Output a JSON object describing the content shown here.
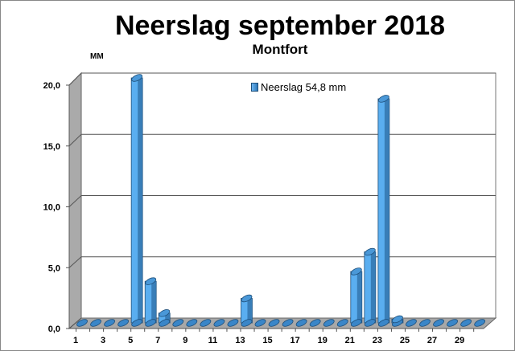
{
  "chart_data": {
    "type": "bar",
    "title": "Neerslag september 2018",
    "subtitle": "Montfort",
    "ylabel": "MM",
    "xlabel": "",
    "ylim": [
      0,
      20
    ],
    "yticks": [
      "0,0",
      "5,0",
      "10,0",
      "15,0",
      "20,0"
    ],
    "ytick_values": [
      0,
      5,
      10,
      15,
      20
    ],
    "categories": [
      1,
      2,
      3,
      4,
      5,
      6,
      7,
      8,
      9,
      10,
      11,
      12,
      13,
      14,
      15,
      16,
      17,
      18,
      19,
      20,
      21,
      22,
      23,
      24,
      25,
      26,
      27,
      28,
      29,
      30
    ],
    "xtick_labels": [
      "1",
      "3",
      "5",
      "7",
      "9",
      "11",
      "13",
      "15",
      "17",
      "19",
      "21",
      "23",
      "25",
      "27",
      "29"
    ],
    "series": [
      {
        "name": "Neerslag 54,8 mm",
        "values": [
          0,
          0,
          0,
          0,
          20.0,
          3.4,
          0.8,
          0,
          0,
          0,
          0,
          0,
          2.0,
          0,
          0,
          0,
          0,
          0,
          0,
          0,
          4.2,
          5.8,
          18.3,
          0.3,
          0,
          0,
          0,
          0,
          0,
          0
        ],
        "color": "#5aaef0"
      }
    ],
    "legend_position": "top-center",
    "grid": true
  }
}
